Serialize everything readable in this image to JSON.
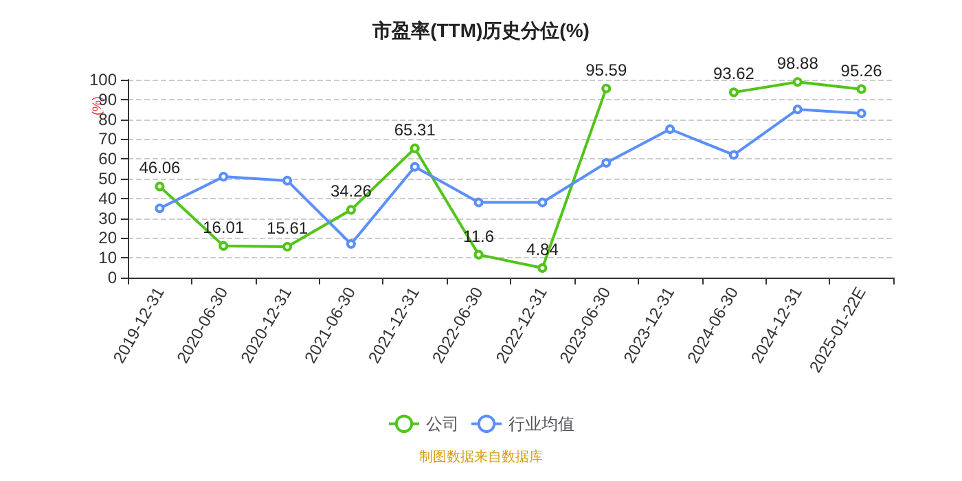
{
  "chart_data": {
    "type": "line",
    "title": "市盈率(TTM)历史分位(%)",
    "ylabel": "(%)",
    "categories": [
      "2019-12-31",
      "2020-06-30",
      "2020-12-31",
      "2021-06-30",
      "2021-12-31",
      "2022-06-30",
      "2022-12-31",
      "2023-06-30",
      "2023-12-31",
      "2024-06-30",
      "2024-12-31",
      "2025-01-22E"
    ],
    "series": [
      {
        "name": "公司",
        "color": "#52c41a",
        "values": [
          46.06,
          16.01,
          15.61,
          34.26,
          65.31,
          11.6,
          4.84,
          95.59,
          null,
          93.62,
          98.88,
          95.26
        ],
        "value_labels": [
          "46.06",
          "16.01",
          "15.61",
          "34.26",
          "65.31",
          "11.6",
          "4.84",
          "95.59",
          null,
          "93.62",
          "98.88",
          "95.26"
        ]
      },
      {
        "name": "行业均值",
        "color": "#5b8ff9",
        "values": [
          35,
          51,
          49,
          17,
          56,
          38,
          38,
          58,
          75,
          62,
          85,
          83
        ]
      }
    ],
    "ylim": [
      0,
      100
    ],
    "yticks": [
      0,
      10,
      20,
      30,
      40,
      50,
      60,
      70,
      80,
      90,
      100
    ],
    "grid": "y",
    "legend": "bottom",
    "marker": "circle",
    "line_style": "solid",
    "annotations": [
      "制图数据来自数据库"
    ]
  }
}
